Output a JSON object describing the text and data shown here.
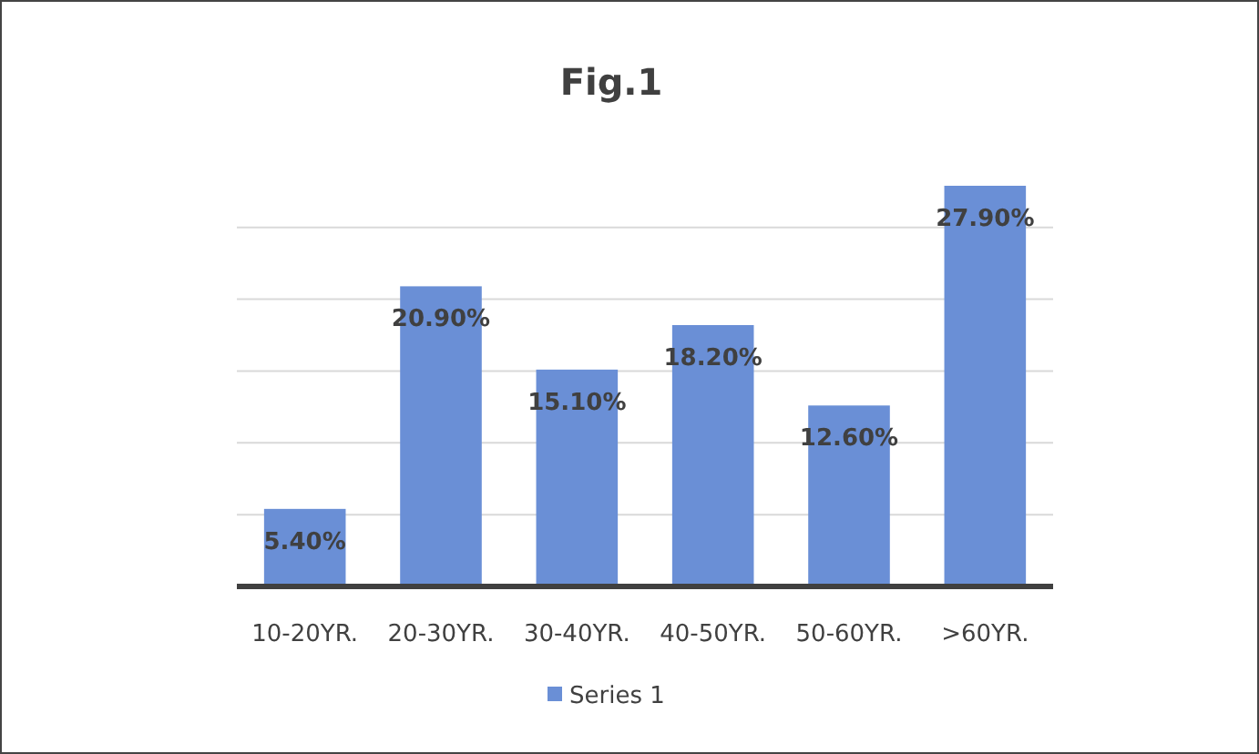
{
  "chart_data": {
    "type": "bar",
    "title": "Fig.1",
    "categories": [
      "10-20YR.",
      "20-30YR.",
      "30-40YR.",
      "40-50YR.",
      "50-60YR.",
      ">60YR."
    ],
    "series": [
      {
        "name": "Series 1",
        "color": "#6a8fd6",
        "values": [
          5.4,
          20.9,
          15.1,
          18.2,
          12.6,
          27.9
        ],
        "value_labels": [
          "5.40%",
          "20.90%",
          "15.10%",
          "18.20%",
          "12.60%",
          "27.90%"
        ]
      }
    ],
    "yticks": [
      {
        "value": 0,
        "label": null
      },
      {
        "value": 5,
        "label": null
      },
      {
        "value": 10,
        "label": null
      },
      {
        "value": 15,
        "label": null
      },
      {
        "value": 20,
        "label": null
      },
      {
        "value": 25,
        "label": null
      }
    ],
    "tick_labels": "x",
    "grid": "y",
    "legend": "bottom"
  }
}
